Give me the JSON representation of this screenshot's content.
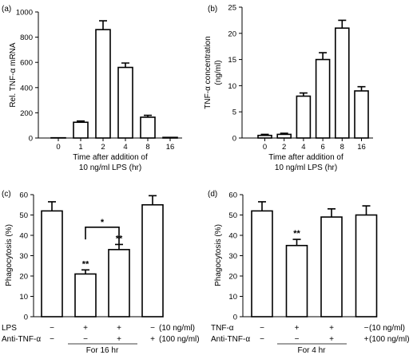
{
  "chart_data": [
    {
      "type": "bar",
      "panel": "(a)",
      "categories": [
        "0",
        "1",
        "2",
        "4",
        "8",
        "16"
      ],
      "values": [
        2,
        125,
        860,
        560,
        165,
        5
      ],
      "errors": [
        0,
        10,
        70,
        35,
        15,
        0
      ],
      "ylabel": "Rel. TNF-α mRNA",
      "xlabel_lines": [
        "Time after addition of",
        "10 ng/ml LPS (hr)"
      ],
      "ylim": [
        0,
        1000
      ],
      "yticks": [
        "0",
        "200",
        "400",
        "600",
        "800",
        "1000"
      ]
    },
    {
      "type": "bar",
      "panel": "(b)",
      "categories": [
        "0",
        "2",
        "4",
        "6",
        "8",
        "16"
      ],
      "values": [
        0.5,
        0.7,
        8,
        15,
        21,
        9
      ],
      "errors": [
        0.2,
        0.2,
        0.6,
        1.3,
        1.5,
        0.8
      ],
      "ylabel_lines": [
        "TNF-α concentration",
        "(ng/ml)"
      ],
      "xlabel_lines": [
        "Time after addition of",
        "10 ng/ml LPS (hr)"
      ],
      "ylim": [
        0,
        25
      ],
      "yticks": [
        "0",
        "5",
        "10",
        "15",
        "20",
        "25"
      ]
    },
    {
      "type": "bar",
      "panel": "(c)",
      "values": [
        52,
        21,
        33,
        55
      ],
      "errors": [
        4.5,
        2,
        2.5,
        4.5
      ],
      "stars": [
        "",
        "**",
        "**",
        ""
      ],
      "bracket_star": "*",
      "ylabel": "Phagocytosis (%)",
      "ylim": [
        0,
        60
      ],
      "yticks": [
        "0",
        "10",
        "20",
        "30",
        "40",
        "50",
        "60"
      ],
      "row1": {
        "label": "LPS",
        "signs": [
          "−",
          "+",
          "+",
          "−"
        ],
        "note": "(10 ng/ml)"
      },
      "row2": {
        "label": "Anti-TNF-α",
        "signs": [
          "−",
          "−",
          "+",
          "+"
        ],
        "note": "(100 ng/ml)"
      },
      "footnote": "For 16 hr"
    },
    {
      "type": "bar",
      "panel": "(d)",
      "values": [
        52,
        35,
        49,
        50
      ],
      "errors": [
        4.5,
        3,
        4,
        4.5
      ],
      "stars": [
        "",
        "**",
        "",
        ""
      ],
      "ylabel": "Phagocytosis (%)",
      "ylim": [
        0,
        60
      ],
      "yticks": [
        "0",
        "10",
        "20",
        "30",
        "40",
        "50",
        "60"
      ],
      "row1": {
        "label": "TNF-α",
        "signs": [
          "−",
          "+",
          "+",
          "−"
        ],
        "note": "(10 ng/ml)"
      },
      "row2": {
        "label": "Anti-TNF-α",
        "signs": [
          "−",
          "−",
          "+",
          "+"
        ],
        "note": "(100 ng/ml)"
      },
      "footnote": "For 4 hr"
    }
  ]
}
